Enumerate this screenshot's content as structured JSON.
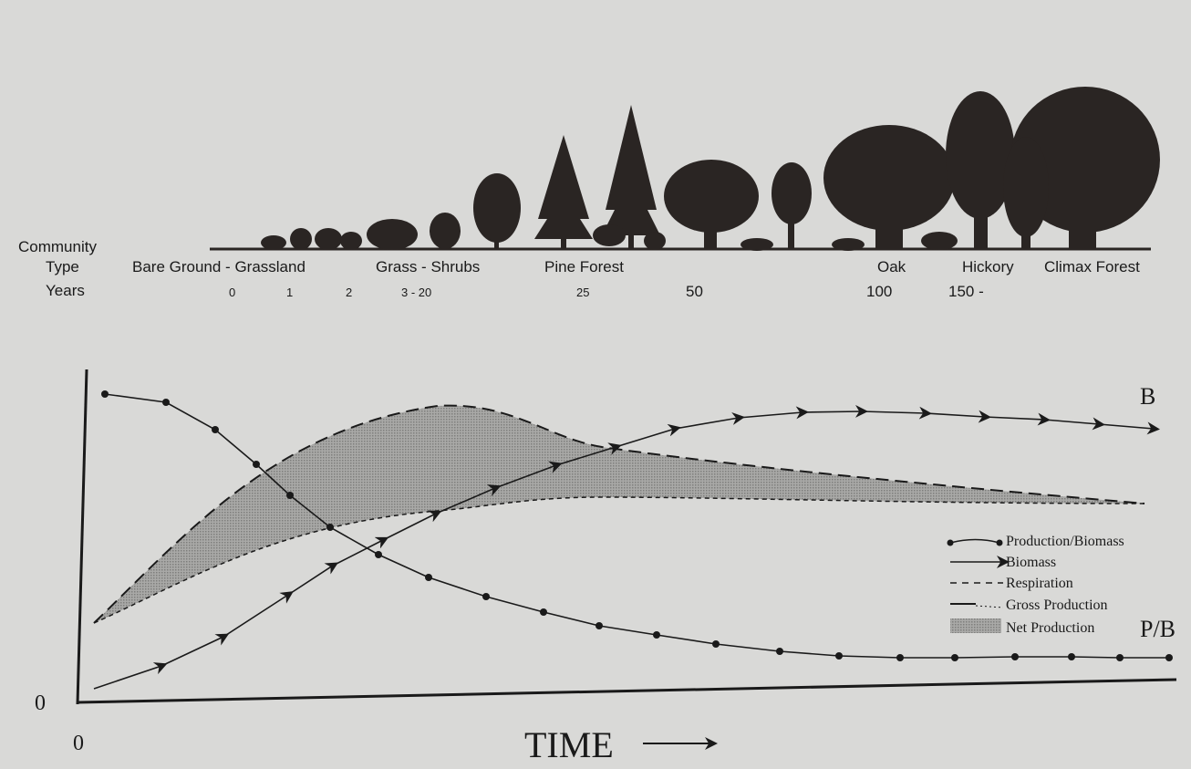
{
  "header": {
    "row_labels": [
      "Community",
      "Type",
      "Years"
    ],
    "community_types": [
      "Bare Ground - Grassland",
      "Grass - Shrubs",
      "Pine Forest",
      "Oak",
      "Hickory",
      "Climax Forest"
    ],
    "years": [
      "0",
      "1",
      "2",
      "3 - 20",
      "25",
      "50",
      "100",
      "150 -"
    ]
  },
  "graph": {
    "y_origin": "0",
    "x_origin": "0",
    "x_axis_label": "TIME",
    "curve_labels": [
      "B",
      "P/B"
    ],
    "legend": [
      "Production/Biomass",
      "Biomass",
      "Respiration",
      "Gross Production",
      "Net Production"
    ]
  }
}
